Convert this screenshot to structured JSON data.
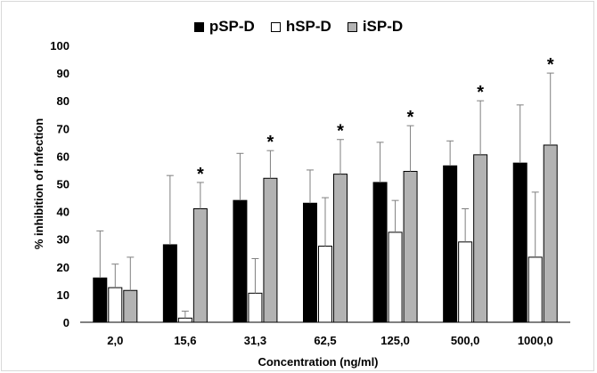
{
  "chart_data": {
    "type": "bar",
    "categories": [
      "2,0",
      "15,6",
      "31,3",
      "62,5",
      "125,0",
      "500,0",
      "1000,0"
    ],
    "series": [
      {
        "name": "pSP-D",
        "color": "#000000",
        "values": [
          16,
          28,
          44,
          43,
          50.5,
          56.5,
          57.5
        ],
        "errors": [
          17,
          25,
          17,
          12,
          14.5,
          9,
          21
        ]
      },
      {
        "name": "hSP-D",
        "color": "#ffffff",
        "values": [
          12.5,
          1.5,
          10.5,
          27.5,
          32.5,
          29,
          23.5
        ],
        "errors": [
          8.5,
          2.5,
          12.5,
          17.5,
          11.5,
          12,
          23.5
        ]
      },
      {
        "name": "iSP-D",
        "color": "#b3b3b3",
        "values": [
          11.5,
          41,
          52,
          53.5,
          54.5,
          60.5,
          64
        ],
        "errors": [
          12,
          9.5,
          10,
          12.5,
          16.5,
          19.5,
          26
        ]
      }
    ],
    "significance": [
      false,
      true,
      true,
      true,
      true,
      true,
      true
    ],
    "significance_mark": "*",
    "xlabel": "Concentration (ng/ml)",
    "ylabel": "% inhibition of infection",
    "ylim": [
      0,
      100
    ],
    "yticks": [
      0,
      10,
      20,
      30,
      40,
      50,
      60,
      70,
      80,
      90,
      100
    ],
    "legend_position": "top-center",
    "grid": false
  }
}
